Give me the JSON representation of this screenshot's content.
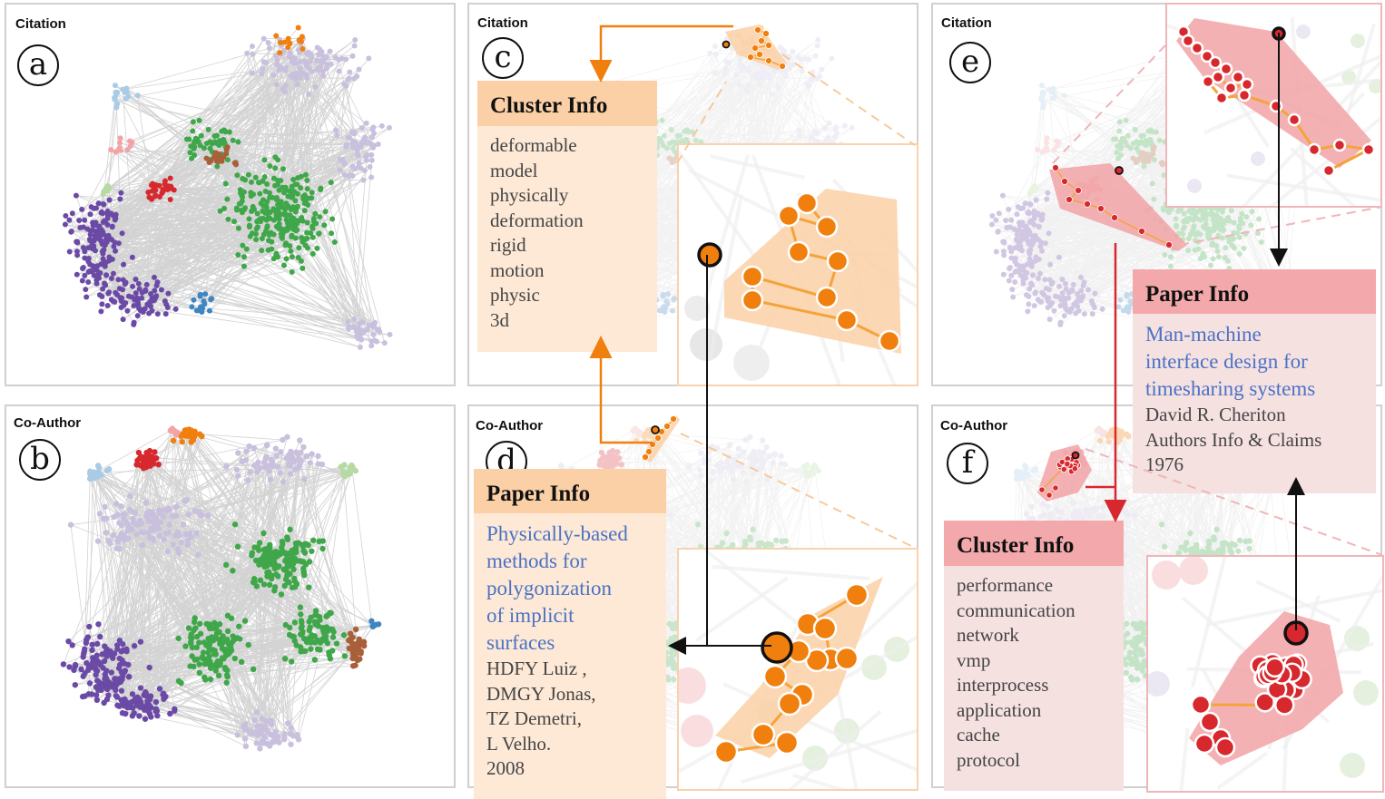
{
  "panels": {
    "a": {
      "title": "Citation",
      "letter": "a"
    },
    "b": {
      "title": "Co-Author",
      "letter": "b"
    },
    "c": {
      "title": "Citation",
      "letter": "c"
    },
    "d": {
      "title": "Co-Author",
      "letter": "d"
    },
    "e": {
      "title": "Citation",
      "letter": "e"
    },
    "f": {
      "title": "Co-Author",
      "letter": "f"
    }
  },
  "cluster_info_c": {
    "header": "Cluster Info",
    "terms": [
      "deformable",
      "model",
      "physically",
      "deformation",
      "rigid",
      "motion",
      "physic",
      "3d"
    ]
  },
  "paper_info_d": {
    "header": "Paper Info",
    "title_lines": [
      "Physically-based",
      "methods for",
      "polygonization",
      "of implicit",
      "surfaces"
    ],
    "author_lines": [
      "HDFY Luiz ,",
      "DMGY Jonas,",
      "TZ Demetri,",
      "L Velho."
    ],
    "year": "2008"
  },
  "paper_info_e": {
    "header": "Paper Info",
    "title_lines": [
      "Man-machine",
      "interface design for",
      "timesharing systems"
    ],
    "author_lines": [
      "David R. Cheriton",
      " Authors Info & Claims"
    ],
    "year": "1976"
  },
  "cluster_info_f": {
    "header": "Cluster Info",
    "terms": [
      "performance",
      "communication",
      "network",
      "vmp",
      "interprocess",
      "application",
      "cache",
      "protocol"
    ]
  },
  "colors": {
    "green": "#3fa74a",
    "purple": "#6b4aa6",
    "lavender": "#c9c0de",
    "light_blue": "#a9cbe6",
    "blue": "#3d86c1",
    "red": "#d7282e",
    "pink": "#f2a3a6",
    "orange": "#f07f0d",
    "light_orange": "#fbd0a6",
    "brown": "#a95f3a",
    "light_green": "#b7d9a3",
    "edge": "#d3d3d3"
  }
}
